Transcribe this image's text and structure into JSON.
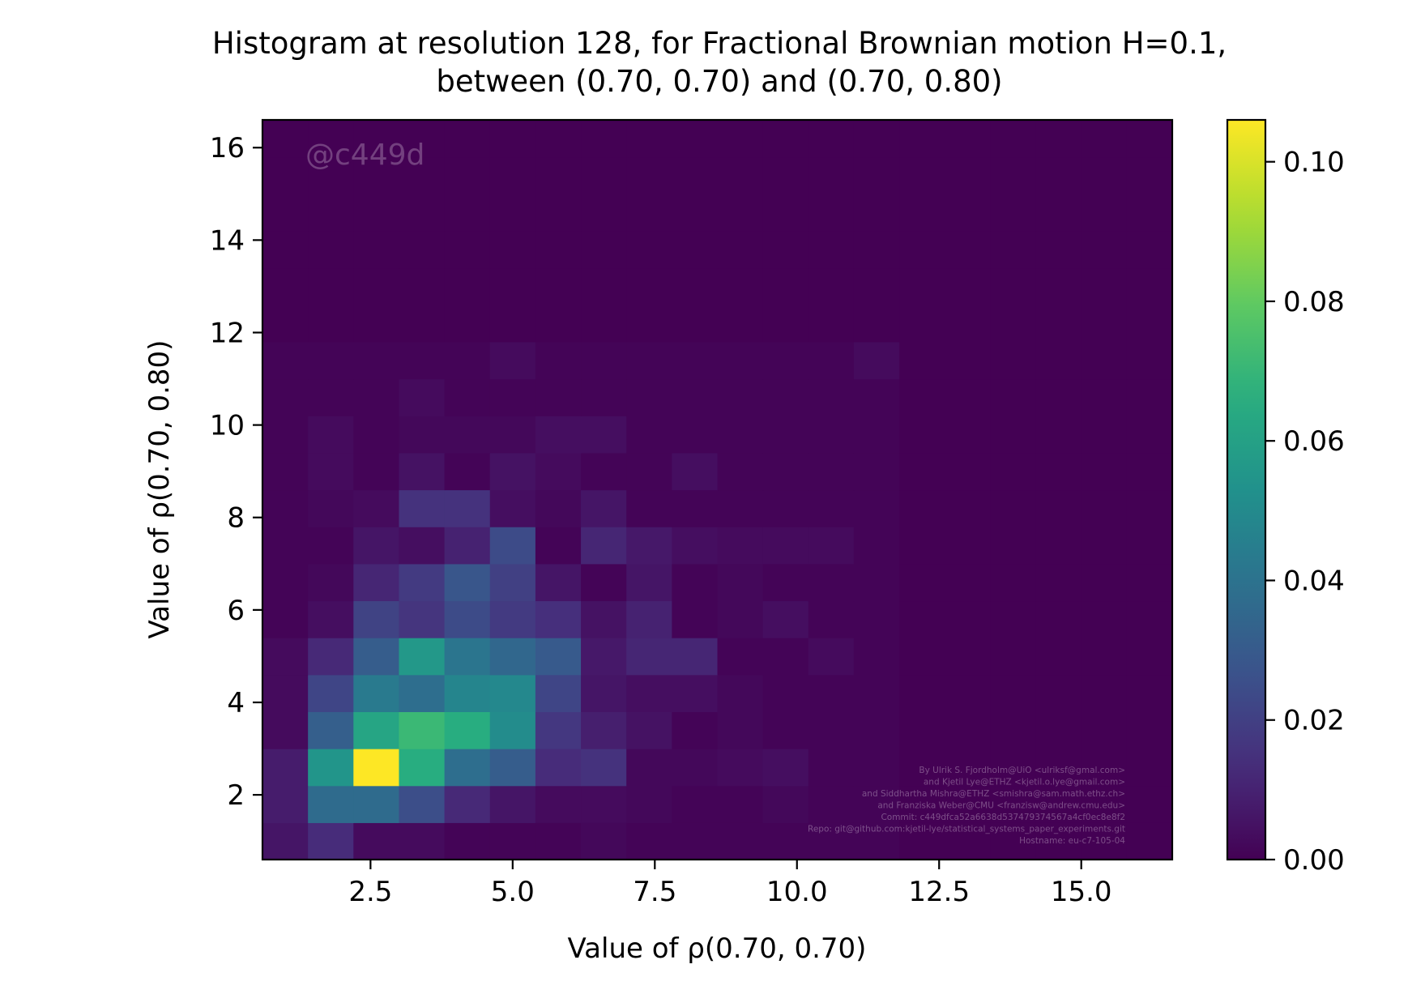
{
  "chart_data": {
    "type": "heatmap",
    "title_line1": "Histogram at resolution 128, for Fractional Brownian motion H=0.1,",
    "title_line2": "between (0.70, 0.70) and (0.70, 0.80)",
    "xlabel": "Value of ρ(0.70, 0.70)",
    "ylabel": "Value of ρ(0.70, 0.80)",
    "xlim": [
      0.6,
      16.6
    ],
    "ylim": [
      0.6,
      16.6
    ],
    "x_ticks": [
      2.5,
      5.0,
      7.5,
      10.0,
      12.5,
      15.0
    ],
    "x_tick_labels": [
      "2.5",
      "5.0",
      "7.5",
      "10.0",
      "12.5",
      "15.0"
    ],
    "y_ticks": [
      2,
      4,
      6,
      8,
      10,
      12,
      14,
      16
    ],
    "y_tick_labels": [
      "2",
      "4",
      "6",
      "8",
      "10",
      "12",
      "14",
      "16"
    ],
    "bins": {
      "x_start": 0.6,
      "y_start": 0.6,
      "width": 0.8,
      "nx": 20,
      "ny": 20
    },
    "colormap": "viridis",
    "clim": [
      0,
      0.106
    ],
    "colorbar_ticks": [
      0.0,
      0.02,
      0.04,
      0.06,
      0.08,
      0.1
    ],
    "colorbar_tick_labels": [
      "0.00",
      "0.02",
      "0.04",
      "0.06",
      "0.08",
      "0.10"
    ],
    "values": [
      [
        0.006,
        0.013,
        0.003,
        0.003,
        0.001,
        0.001,
        0.001,
        0.002,
        0.001,
        0.001,
        0.001,
        0.001,
        0.001,
        0.001,
        0,
        0,
        0,
        0,
        0,
        0
      ],
      [
        0.008,
        0.037,
        0.037,
        0.025,
        0.012,
        0.006,
        0.003,
        0.003,
        0.002,
        0.001,
        0.001,
        0.002,
        0.001,
        0.001,
        0,
        0,
        0,
        0,
        0,
        0
      ],
      [
        0.008,
        0.055,
        0.106,
        0.066,
        0.038,
        0.031,
        0.013,
        0.015,
        0.002,
        0.002,
        0.003,
        0.004,
        0.001,
        0.001,
        0,
        0,
        0,
        0,
        0,
        0
      ],
      [
        0.003,
        0.032,
        0.062,
        0.071,
        0.066,
        0.051,
        0.017,
        0.009,
        0.005,
        0.001,
        0.002,
        0.001,
        0.001,
        0.001,
        0,
        0,
        0,
        0,
        0,
        0
      ],
      [
        0.003,
        0.022,
        0.043,
        0.038,
        0.048,
        0.049,
        0.022,
        0.006,
        0.004,
        0.004,
        0.002,
        0.001,
        0.001,
        0.001,
        0,
        0,
        0,
        0,
        0,
        0
      ],
      [
        0.003,
        0.012,
        0.031,
        0.056,
        0.041,
        0.035,
        0.03,
        0.007,
        0.011,
        0.011,
        0.001,
        0.001,
        0.003,
        0.001,
        0,
        0,
        0,
        0,
        0,
        0
      ],
      [
        0.001,
        0.004,
        0.021,
        0.016,
        0.024,
        0.018,
        0.014,
        0.005,
        0.01,
        0.001,
        0.002,
        0.004,
        0.001,
        0.001,
        0,
        0,
        0,
        0,
        0,
        0
      ],
      [
        0.001,
        0.002,
        0.011,
        0.018,
        0.028,
        0.02,
        0.006,
        0.001,
        0.006,
        0.001,
        0.002,
        0.001,
        0.001,
        0.001,
        0,
        0,
        0,
        0,
        0,
        0
      ],
      [
        0.001,
        0.001,
        0.006,
        0.004,
        0.01,
        0.024,
        0.001,
        0.011,
        0.007,
        0.004,
        0.003,
        0.003,
        0.003,
        0.001,
        0,
        0,
        0,
        0,
        0,
        0
      ],
      [
        0.001,
        0.002,
        0.003,
        0.015,
        0.015,
        0.004,
        0.002,
        0.006,
        0.001,
        0.001,
        0.001,
        0.001,
        0.001,
        0.001,
        0,
        0,
        0,
        0,
        0,
        0
      ],
      [
        0.001,
        0.003,
        0.001,
        0.005,
        0.001,
        0.005,
        0.003,
        0.001,
        0.001,
        0.004,
        0.001,
        0.001,
        0.001,
        0.001,
        0,
        0,
        0,
        0,
        0,
        0
      ],
      [
        0.001,
        0.003,
        0.001,
        0.002,
        0.002,
        0.002,
        0.004,
        0.004,
        0.001,
        0.001,
        0.001,
        0.001,
        0.001,
        0.001,
        0,
        0,
        0,
        0,
        0,
        0
      ],
      [
        0.001,
        0.001,
        0.001,
        0.003,
        0.001,
        0.001,
        0.001,
        0.001,
        0.001,
        0.001,
        0.001,
        0.001,
        0.001,
        0.001,
        0,
        0,
        0,
        0,
        0,
        0
      ],
      [
        0.001,
        0.001,
        0.001,
        0.001,
        0.001,
        0.003,
        0.001,
        0.001,
        0.001,
        0.001,
        0.001,
        0.001,
        0.001,
        0.003,
        0,
        0,
        0,
        0,
        0,
        0
      ],
      [
        0,
        0,
        0,
        0,
        0,
        0,
        0,
        0,
        0,
        0,
        0,
        0,
        0,
        0,
        0,
        0,
        0,
        0,
        0,
        0
      ],
      [
        0,
        0,
        0,
        0,
        0,
        0,
        0,
        0,
        0,
        0,
        0,
        0,
        0,
        0,
        0,
        0,
        0,
        0,
        0,
        0
      ],
      [
        0,
        0,
        0,
        0,
        0,
        0,
        0,
        0,
        0,
        0,
        0,
        0,
        0,
        0,
        0,
        0,
        0,
        0,
        0,
        0
      ],
      [
        0,
        0,
        0,
        0,
        0,
        0,
        0,
        0,
        0,
        0,
        0,
        0,
        0,
        0,
        0,
        0,
        0,
        0,
        0,
        0
      ],
      [
        0,
        0,
        0,
        0,
        0,
        0,
        0,
        0,
        0,
        0,
        0,
        0,
        0,
        0,
        0,
        0,
        0,
        0,
        0,
        0
      ],
      [
        0,
        0,
        0,
        0,
        0,
        0,
        0,
        0,
        0,
        0,
        0,
        0,
        0,
        0,
        0,
        0,
        0,
        0,
        0,
        0
      ]
    ],
    "watermark": "@c449d",
    "credits": [
      "By Ulrik S. Fjordholm@UiO <ulriksf@gmal.com>",
      "and Kjetil Lye@ETHZ <kjetil.o.lye@gmail.com>",
      "and Siddhartha Mishra@ETHZ <smishra@sam.math.ethz.ch>",
      "and Franziska Weber@CMU <franzisw@andrew.cmu.edu>",
      "Commit: c449dfca52a6638d537479374567a4cf0ec8e8f2",
      "Repo: git@github.com:kjetil-lye/statistical_systems_paper_experiments.git",
      "Hostname: eu-c7-105-04"
    ]
  }
}
